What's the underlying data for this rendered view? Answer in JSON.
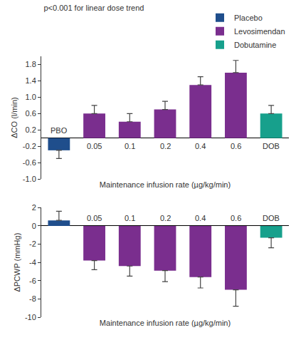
{
  "chart_data": [
    {
      "type": "bar",
      "title": "p<0.001 for linear dose trend",
      "categories": [
        "PBO",
        "0.05",
        "0.1",
        "0.2",
        "0.4",
        "0.6",
        "DOB"
      ],
      "series": [
        {
          "name": "Placebo",
          "color": "#1f4e8c",
          "values": [
            -0.3,
            null,
            null,
            null,
            null,
            null,
            null
          ],
          "errors": [
            0.2,
            null,
            null,
            null,
            null,
            null,
            null
          ]
        },
        {
          "name": "Levosimendan",
          "color": "#7a2e8e",
          "values": [
            null,
            0.6,
            0.4,
            0.7,
            1.3,
            1.6,
            null
          ],
          "errors": [
            null,
            0.2,
            0.2,
            0.2,
            0.2,
            0.3,
            null
          ]
        },
        {
          "name": "Dobutamine",
          "color": "#17a08c",
          "values": [
            null,
            null,
            null,
            null,
            null,
            null,
            0.6
          ],
          "errors": [
            null,
            null,
            null,
            null,
            null,
            null,
            0.2
          ]
        }
      ],
      "xlabel": "Maintenance infusion rate (µg/kg/min)",
      "ylabel": "ΔCO (l/min)",
      "ylim": [
        -1.0,
        2.0
      ],
      "yticks": [
        {
          "value": -1.0,
          "label": "-1.0"
        },
        -0.6,
        -0.2,
        0.2,
        0.6,
        {
          "value": 1.0,
          "label": "1.0"
        },
        1.4,
        1.8
      ],
      "legend": "top right",
      "grid": false
    },
    {
      "type": "bar",
      "categories": [
        null,
        "0.05",
        "0.1",
        "0.2",
        "0.4",
        "0.6",
        "DOB"
      ],
      "values": [
        0.6,
        -3.8,
        -4.4,
        -4.9,
        -5.6,
        -7.0,
        -1.3
      ],
      "errors": [
        1.0,
        1.0,
        1.1,
        1.2,
        1.2,
        1.8,
        1.1
      ],
      "colors": [
        "#1f4e8c",
        "#7a2e8e",
        "#7a2e8e",
        "#7a2e8e",
        "#7a2e8e",
        "#7a2e8e",
        "#17a08c"
      ],
      "xlabel": "Maintenance infusion rate (µg/kg/min)",
      "ylabel": "ΔPCWP (mmHg)",
      "ylim": [
        -10,
        2
      ],
      "yticks": [
        2,
        0,
        -2,
        -4,
        -6,
        -8,
        -10
      ],
      "grid": false
    }
  ]
}
